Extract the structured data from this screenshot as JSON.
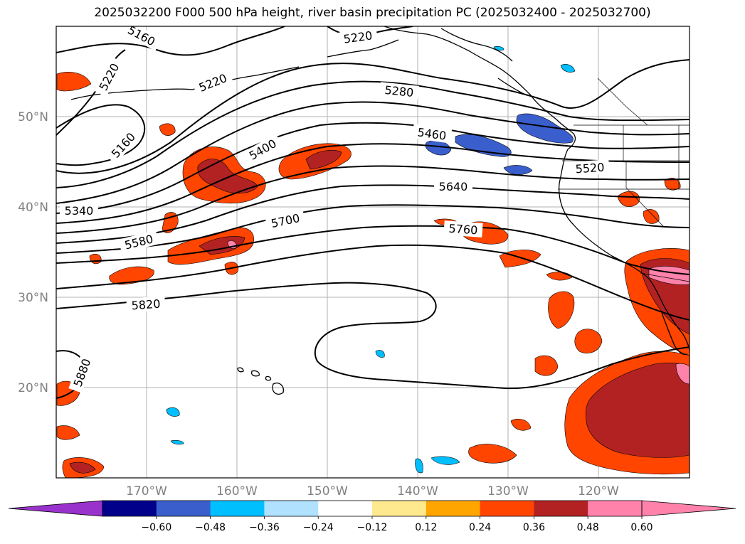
{
  "title": "2025032200 F000 500 hPa height, river basin precipitation PC (2025032400 - 2025032700)",
  "axes": {
    "lat_labels": [
      "50°N",
      "40°N",
      "30°N",
      "20°N"
    ],
    "lon_labels": [
      "170°W",
      "160°W",
      "150°W",
      "140°W",
      "130°W",
      "120°W"
    ]
  },
  "contour_labels": [
    "5160",
    "5220",
    "5220",
    "5220",
    "5160",
    "5280",
    "5340",
    "5400",
    "5460",
    "5520",
    "5580",
    "5640",
    "5700",
    "5760",
    "5820",
    "5880"
  ],
  "colorbar": {
    "tick_labels": [
      "−0.60",
      "−0.48",
      "−0.36",
      "−0.24",
      "−0.12",
      "0.12",
      "0.24",
      "0.36",
      "0.48",
      "0.60"
    ],
    "colors": [
      "#9932cc",
      "#00008b",
      "#3a5fcd",
      "#00bfff",
      "#b0e2ff",
      "#ffffff",
      "#ffe98f",
      "#ffa500",
      "#ff4500",
      "#b22222",
      "#ff82ab",
      "#ff82ab"
    ]
  },
  "colors": {
    "land_outline": "#000000",
    "height_contour": "#000000",
    "grid": "#b0b0b0",
    "tick_label": "#808080"
  }
}
